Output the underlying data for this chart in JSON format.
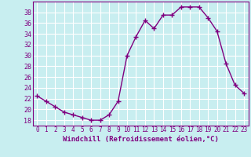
{
  "x": [
    0,
    1,
    2,
    3,
    4,
    5,
    6,
    7,
    8,
    9,
    10,
    11,
    12,
    13,
    14,
    15,
    16,
    17,
    18,
    19,
    20,
    21,
    22,
    23
  ],
  "y": [
    22.5,
    21.5,
    20.5,
    19.5,
    19.0,
    18.5,
    18.0,
    18.0,
    19.0,
    21.5,
    30.0,
    33.5,
    36.5,
    35.0,
    37.5,
    37.5,
    39.0,
    39.0,
    39.0,
    37.0,
    34.5,
    28.5,
    24.5,
    23.0
  ],
  "line_color": "#800080",
  "marker": "+",
  "bg_color": "#c8eef0",
  "grid_color": "#b0d8e0",
  "xlabel": "Windchill (Refroidissement éolien,°C)",
  "xlabel_color": "#800080",
  "tick_color": "#800080",
  "spine_color": "#800080",
  "ylim": [
    17,
    40
  ],
  "xlim": [
    -0.5,
    23.5
  ],
  "yticks": [
    18,
    20,
    22,
    24,
    26,
    28,
    30,
    32,
    34,
    36,
    38
  ],
  "xticks": [
    0,
    1,
    2,
    3,
    4,
    5,
    6,
    7,
    8,
    9,
    10,
    11,
    12,
    13,
    14,
    15,
    16,
    17,
    18,
    19,
    20,
    21,
    22,
    23
  ],
  "xtick_labels": [
    "0",
    "1",
    "2",
    "3",
    "4",
    "5",
    "6",
    "7",
    "8",
    "9",
    "10",
    "11",
    "12",
    "13",
    "14",
    "15",
    "16",
    "17",
    "18",
    "19",
    "20",
    "21",
    "22",
    "23"
  ],
  "line_width": 1.0,
  "marker_size": 4,
  "xlabel_fontsize": 6.5,
  "xtick_fontsize": 5.5,
  "ytick_fontsize": 6.0
}
